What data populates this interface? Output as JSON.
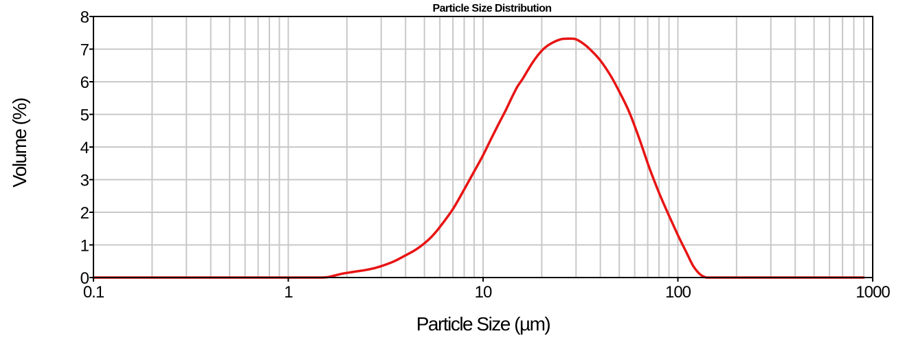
{
  "chart_data": {
    "type": "line",
    "title": "Particle Size Distribution",
    "xlabel": "Particle Size (µm)",
    "ylabel": "Volume (%)",
    "x_scale": "log",
    "xlim": [
      0.1,
      1000
    ],
    "ylim": [
      0,
      8
    ],
    "grid": true,
    "legend": "none",
    "xticks": [
      {
        "value": 0.1,
        "label": "0.1"
      },
      {
        "value": 1,
        "label": "1"
      },
      {
        "value": 10,
        "label": "10"
      },
      {
        "value": 100,
        "label": "100"
      },
      {
        "value": 1000,
        "label": "1000"
      }
    ],
    "yticks": [
      0,
      1,
      2,
      3,
      4,
      5,
      6,
      7,
      8
    ],
    "colors": {
      "series": "#e81414",
      "grid": "#c8c8c8",
      "axis": "#000000"
    },
    "series": [
      {
        "x": [
          0.1,
          0.15,
          0.5,
          1.0,
          1.5,
          1.7,
          1.9,
          2.2,
          2.6,
          3.0,
          3.5,
          4.0,
          4.5,
          5.0,
          5.5,
          6.0,
          7.0,
          8.0,
          9.0,
          10,
          11,
          12,
          13,
          14,
          15,
          16,
          18,
          20,
          22,
          25,
          28,
          30,
          33,
          36,
          40,
          45,
          50,
          56,
          63,
          71,
          80,
          90,
          100,
          110,
          120,
          130,
          140,
          150,
          200,
          300,
          500,
          900
        ],
        "y": [
          0.0,
          0.0,
          0.0,
          0.0,
          0.0,
          0.05,
          0.12,
          0.18,
          0.25,
          0.35,
          0.5,
          0.68,
          0.85,
          1.05,
          1.28,
          1.55,
          2.1,
          2.7,
          3.25,
          3.75,
          4.25,
          4.7,
          5.1,
          5.5,
          5.85,
          6.1,
          6.6,
          6.95,
          7.15,
          7.3,
          7.32,
          7.3,
          7.15,
          6.95,
          6.65,
          6.2,
          5.7,
          5.1,
          4.3,
          3.4,
          2.6,
          1.9,
          1.3,
          0.8,
          0.35,
          0.1,
          0.0,
          0.0,
          0.0,
          0.0,
          0.0,
          0.0
        ]
      }
    ]
  }
}
